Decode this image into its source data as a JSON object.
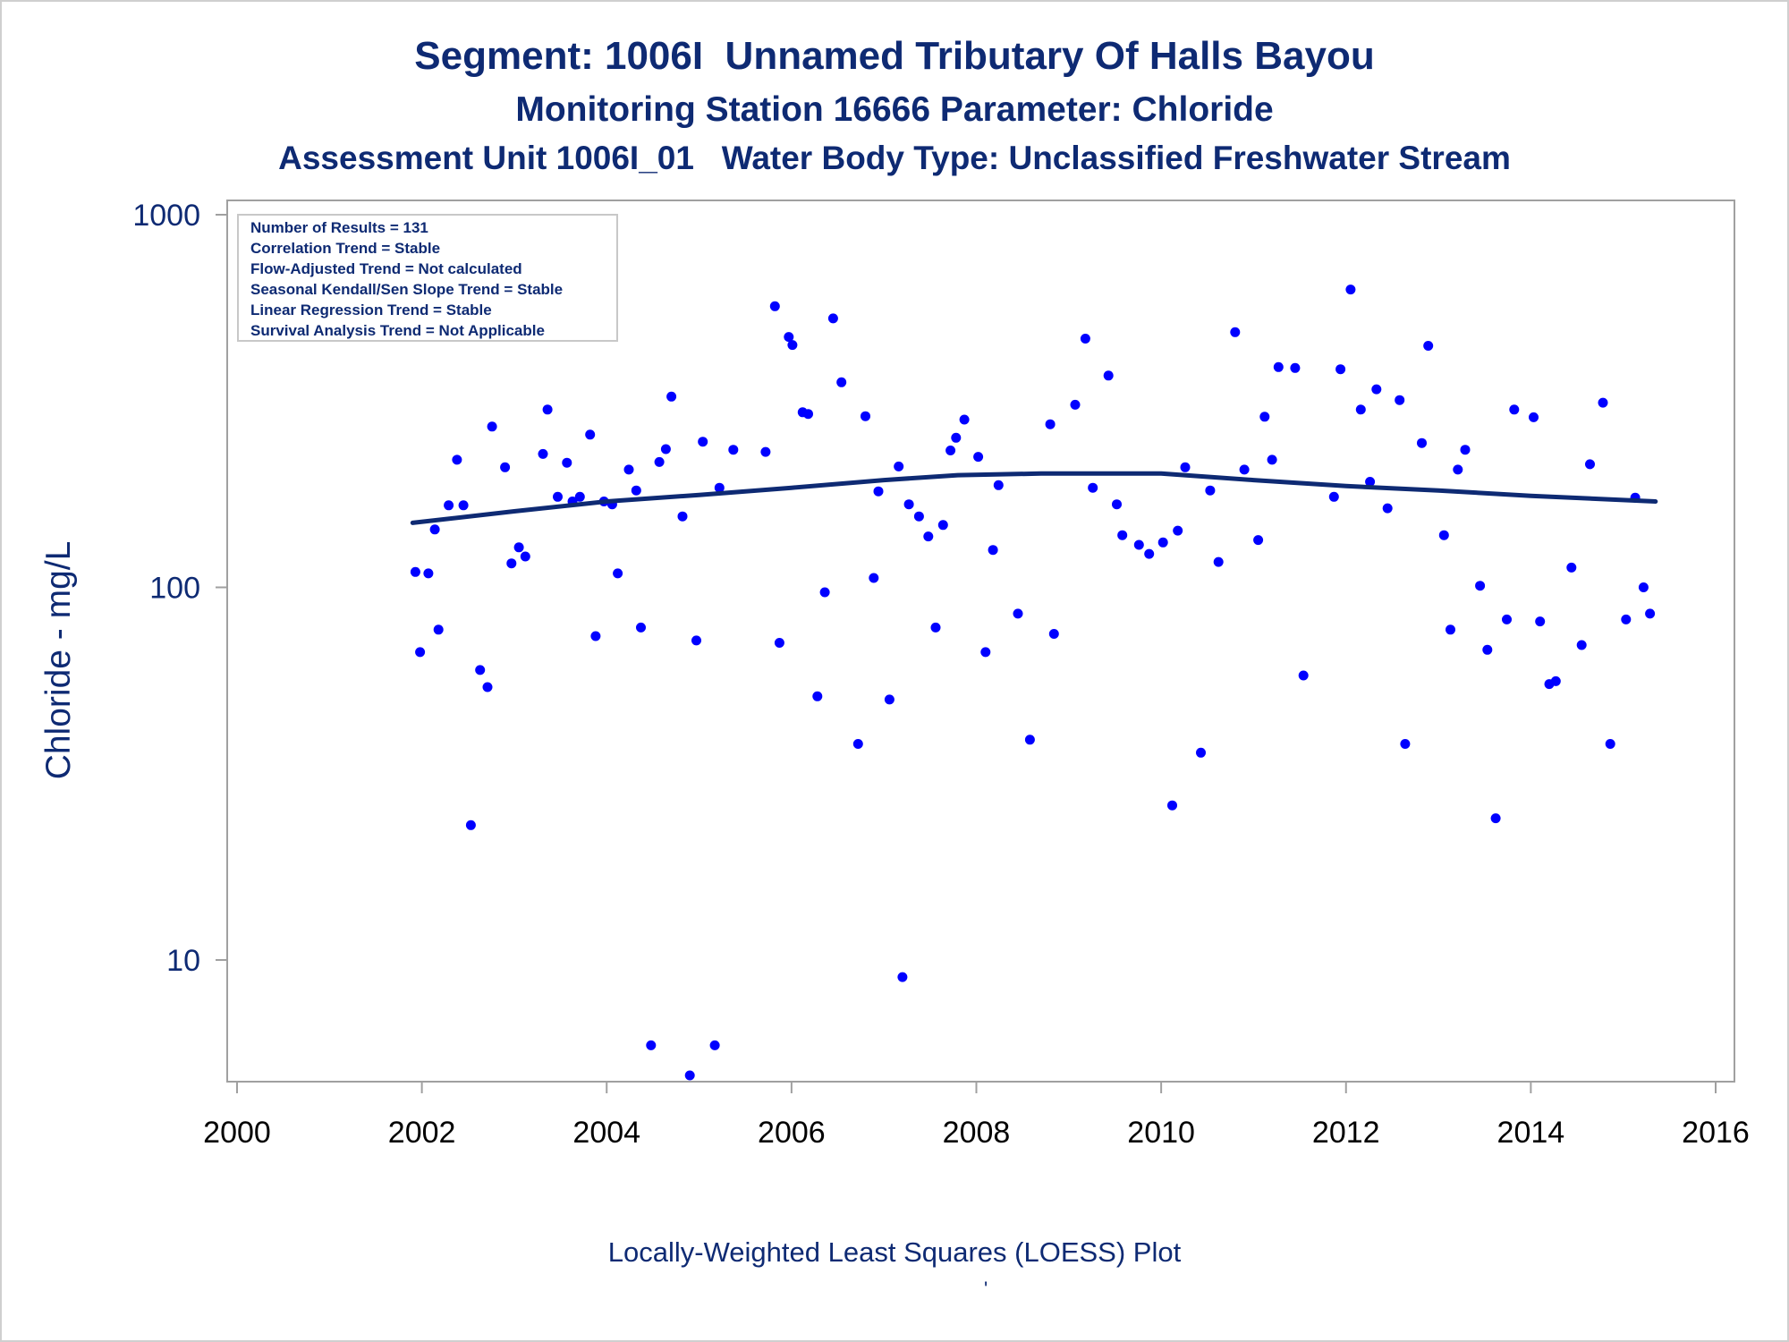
{
  "chart_data": {
    "type": "scatter",
    "title": "Segment: 1006I  Unnamed Tributary Of Halls Bayou",
    "subtitle": "Monitoring Station 16666 Parameter: Chloride",
    "subtitle2": "Assessment Unit 1006I_01   Water Body Type: Unclassified Freshwater Stream",
    "xlabel": "",
    "ylabel": "Chloride - mg/L",
    "footnote": "Locally-Weighted Least Squares (LOESS) Plot",
    "footnote_mark": "'",
    "x_axis": {
      "min": 2000,
      "max": 2016,
      "ticks": [
        2000,
        2002,
        2004,
        2006,
        2008,
        2010,
        2012,
        2014,
        2016
      ]
    },
    "y_axis": {
      "scale": "log",
      "min": 4.7,
      "max": 1000,
      "ticks": [
        10,
        100,
        1000
      ],
      "tick_labels": [
        "10",
        "100",
        "1000"
      ]
    },
    "grid": false,
    "colors": {
      "points": "#0000ff",
      "loess": "#0e2a73",
      "text": "#0e2a73",
      "frame": "#a0a0a0"
    },
    "legend_box": {
      "placement": "top-left",
      "lines": [
        "Number of Results = 131",
        "Correlation Trend = Stable",
        "Flow-Adjusted Trend = Not calculated",
        "Seasonal Kendall/Sen Slope Trend = Stable",
        "Linear Regression Trend = Stable",
        "Survival Analysis Trend = Not Applicable"
      ]
    },
    "loess_curve": [
      [
        2001.9,
        149
      ],
      [
        2003,
        160
      ],
      [
        2004,
        170
      ],
      [
        2005,
        177
      ],
      [
        2006,
        185
      ],
      [
        2007,
        194
      ],
      [
        2007.8,
        200
      ],
      [
        2008.7,
        202
      ],
      [
        2009.5,
        202
      ],
      [
        2010,
        202
      ],
      [
        2011,
        194
      ],
      [
        2012,
        187
      ],
      [
        2013,
        182
      ],
      [
        2014,
        176
      ],
      [
        2015.35,
        170
      ]
    ],
    "points": [
      [
        2001.93,
        110
      ],
      [
        2001.98,
        67
      ],
      [
        2002.07,
        109
      ],
      [
        2002.14,
        143
      ],
      [
        2002.18,
        77
      ],
      [
        2002.29,
        166
      ],
      [
        2002.38,
        220
      ],
      [
        2002.45,
        166
      ],
      [
        2002.53,
        23
      ],
      [
        2002.63,
        60
      ],
      [
        2002.71,
        54
      ],
      [
        2002.76,
        270
      ],
      [
        2002.9,
        210
      ],
      [
        2002.97,
        116
      ],
      [
        2003.05,
        128
      ],
      [
        2003.12,
        121
      ],
      [
        2003.31,
        228
      ],
      [
        2003.36,
        300
      ],
      [
        2003.47,
        175
      ],
      [
        2003.57,
        216
      ],
      [
        2003.63,
        170
      ],
      [
        2003.71,
        175
      ],
      [
        2003.82,
        257
      ],
      [
        2003.88,
        74
      ],
      [
        2003.97,
        170
      ],
      [
        2004.06,
        167
      ],
      [
        2004.12,
        109
      ],
      [
        2004.24,
        207
      ],
      [
        2004.32,
        182
      ],
      [
        2004.37,
        78
      ],
      [
        2004.48,
        5.9
      ],
      [
        2004.57,
        217
      ],
      [
        2004.64,
        235
      ],
      [
        2004.7,
        325
      ],
      [
        2004.82,
        155
      ],
      [
        2004.9,
        4.9
      ],
      [
        2004.97,
        72
      ],
      [
        2005.04,
        246
      ],
      [
        2005.17,
        5.9
      ],
      [
        2005.22,
        185
      ],
      [
        2005.37,
        234
      ],
      [
        2005.72,
        231
      ],
      [
        2005.82,
        568
      ],
      [
        2005.87,
        71
      ],
      [
        2005.97,
        470
      ],
      [
        2006.01,
        447
      ],
      [
        2006.12,
        295
      ],
      [
        2006.18,
        292
      ],
      [
        2006.28,
        51
      ],
      [
        2006.36,
        97
      ],
      [
        2006.45,
        527
      ],
      [
        2006.54,
        355
      ],
      [
        2006.72,
        38
      ],
      [
        2006.8,
        288
      ],
      [
        2006.89,
        106
      ],
      [
        2006.94,
        181
      ],
      [
        2007.06,
        50
      ],
      [
        2007.16,
        211
      ],
      [
        2007.2,
        9
      ],
      [
        2007.27,
        167
      ],
      [
        2007.38,
        155
      ],
      [
        2007.48,
        137
      ],
      [
        2007.56,
        78
      ],
      [
        2007.64,
        147
      ],
      [
        2007.72,
        233
      ],
      [
        2007.78,
        252
      ],
      [
        2007.87,
        282
      ],
      [
        2008.02,
        224
      ],
      [
        2008.1,
        67
      ],
      [
        2008.18,
        126
      ],
      [
        2008.24,
        188
      ],
      [
        2008.45,
        85
      ],
      [
        2008.58,
        39
      ],
      [
        2008.8,
        274
      ],
      [
        2008.84,
        75
      ],
      [
        2009.07,
        309
      ],
      [
        2009.18,
        465
      ],
      [
        2009.26,
        185
      ],
      [
        2009.43,
        370
      ],
      [
        2009.52,
        167
      ],
      [
        2009.58,
        138
      ],
      [
        2009.76,
        130
      ],
      [
        2009.87,
        123
      ],
      [
        2010.02,
        132
      ],
      [
        2010.12,
        26
      ],
      [
        2010.18,
        142
      ],
      [
        2010.26,
        210
      ],
      [
        2010.43,
        36
      ],
      [
        2010.53,
        182
      ],
      [
        2010.62,
        117
      ],
      [
        2010.8,
        484
      ],
      [
        2010.9,
        207
      ],
      [
        2011.05,
        134
      ],
      [
        2011.12,
        287
      ],
      [
        2011.2,
        220
      ],
      [
        2011.27,
        390
      ],
      [
        2011.45,
        388
      ],
      [
        2011.54,
        58
      ],
      [
        2011.87,
        175
      ],
      [
        2011.94,
        385
      ],
      [
        2012.05,
        630
      ],
      [
        2012.16,
        300
      ],
      [
        2012.26,
        192
      ],
      [
        2012.33,
        340
      ],
      [
        2012.45,
        163
      ],
      [
        2012.58,
        318
      ],
      [
        2012.64,
        38
      ],
      [
        2012.82,
        244
      ],
      [
        2012.89,
        445
      ],
      [
        2013.06,
        138
      ],
      [
        2013.13,
        77
      ],
      [
        2013.21,
        207
      ],
      [
        2013.29,
        234
      ],
      [
        2013.45,
        101
      ],
      [
        2013.53,
        68
      ],
      [
        2013.62,
        24
      ],
      [
        2013.74,
        82
      ],
      [
        2013.82,
        300
      ],
      [
        2014.03,
        286
      ],
      [
        2014.1,
        81
      ],
      [
        2014.2,
        55
      ],
      [
        2014.27,
        56
      ],
      [
        2014.44,
        113
      ],
      [
        2014.55,
        70
      ],
      [
        2014.64,
        214
      ],
      [
        2014.78,
        313
      ],
      [
        2014.86,
        38
      ],
      [
        2015.03,
        82
      ],
      [
        2015.13,
        174
      ],
      [
        2015.22,
        100
      ],
      [
        2015.29,
        85
      ]
    ]
  }
}
